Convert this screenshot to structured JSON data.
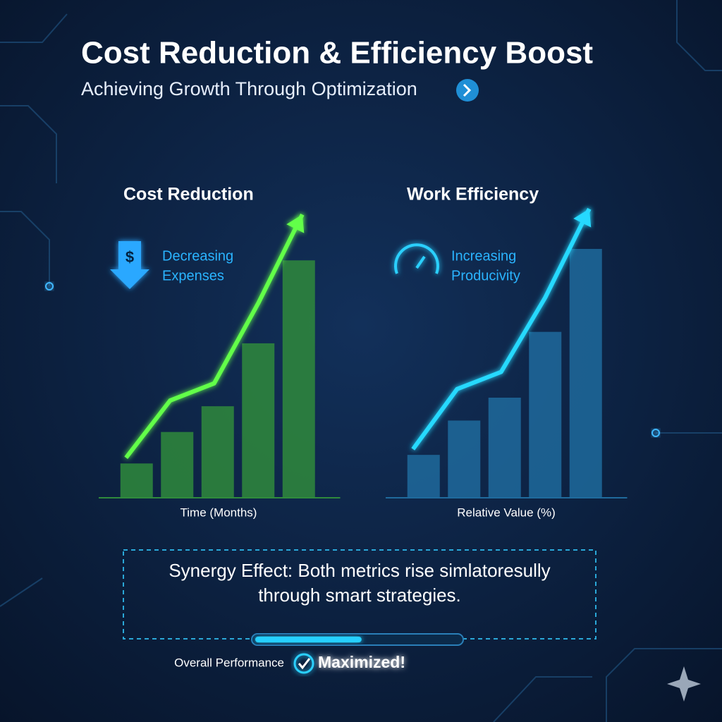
{
  "header": {
    "title": "Cost Reduction & Efficiency Boost",
    "subtitle": "Achieving Growth Through Optimization"
  },
  "chart_data": [
    {
      "type": "bar",
      "title": "Cost Reduction",
      "annotation": [
        "Decreasing",
        "Expenses"
      ],
      "xlabel": "Time (Months)",
      "categories": [
        null,
        null,
        null,
        null,
        null
      ],
      "ylim": [
        0,
        105
      ],
      "series": [
        {
          "type": "bar",
          "color": "#2f8a3c",
          "values": [
            12,
            23,
            32,
            54,
            83
          ]
        },
        {
          "type": "line",
          "color": "#62ff4a",
          "values": [
            14,
            34,
            40,
            68,
            99
          ]
        }
      ]
    },
    {
      "type": "bar",
      "title": "Work Efficiency",
      "annotation": [
        "Increasing",
        "Producivity"
      ],
      "xlabel": "Relative Value (%)",
      "categories": [
        null,
        null,
        null,
        null,
        null
      ],
      "ylim": [
        0,
        105
      ],
      "series": [
        {
          "type": "bar",
          "color": "#1f6a9c",
          "values": [
            15,
            27,
            35,
            58,
            87
          ]
        },
        {
          "type": "line",
          "color": "#27d9ff",
          "values": [
            17,
            38,
            44,
            70,
            101
          ]
        }
      ]
    }
  ],
  "synergy": [
    "Synergy Effect: Both metrics rise simlatoresully",
    "through smart strategies."
  ],
  "footer": {
    "label": "Overall Performance",
    "status": "Maximized!",
    "progress": 52,
    "progress_range": [
      0,
      100
    ]
  }
}
